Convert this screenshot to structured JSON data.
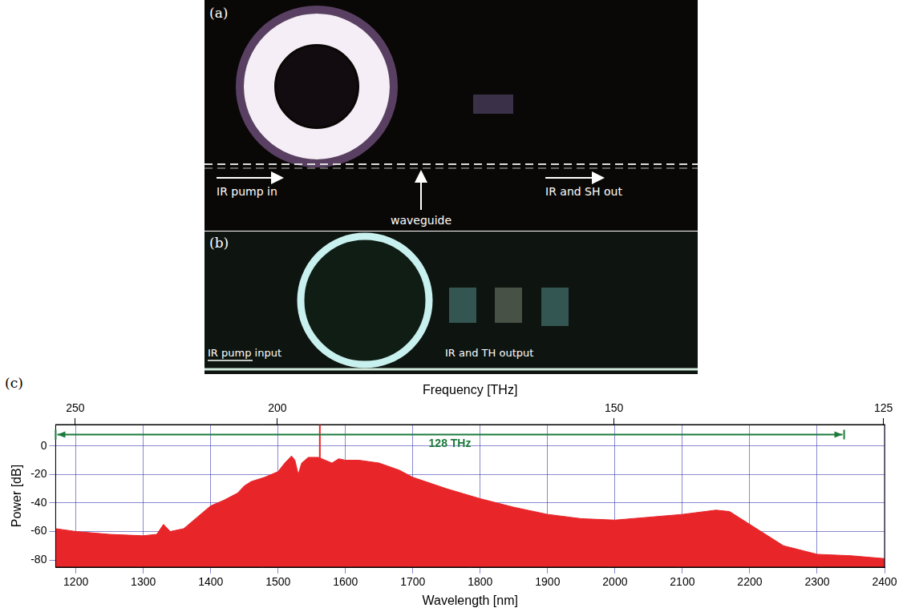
{
  "panel_a": {
    "letter": "(a)",
    "pump_label": "IR pump in",
    "waveguide_label": "waveguide",
    "output_label": "IR and SH out"
  },
  "panel_b": {
    "letter": "(b)",
    "pump_label": "IR pump input",
    "output_label": "IR and TH output"
  },
  "panel_c": {
    "letter": "(c)"
  },
  "chart_data": {
    "type": "line",
    "xlabel": "Wavelength [nm]",
    "ylabel": "Power [dB]",
    "x2label": "Frequency [THz]",
    "xlim": [
      1170,
      2400
    ],
    "xticks": [
      1200,
      1300,
      1400,
      1500,
      1600,
      1700,
      1800,
      1900,
      2000,
      2100,
      2200,
      2300,
      2400
    ],
    "x2ticks": [
      250,
      200,
      150,
      125
    ],
    "ylim": [
      -85,
      15
    ],
    "yticks": [
      -80,
      -60,
      -40,
      -20,
      0
    ],
    "grid": true,
    "series": [
      {
        "type": "area",
        "color": "#e8262a",
        "x": [
          1170,
          1200,
          1250,
          1300,
          1320,
          1330,
          1340,
          1360,
          1380,
          1400,
          1420,
          1440,
          1450,
          1460,
          1480,
          1500,
          1510,
          1520,
          1525,
          1530,
          1535,
          1545,
          1560,
          1570,
          1580,
          1590,
          1600,
          1620,
          1650,
          1680,
          1700,
          1750,
          1800,
          1850,
          1900,
          1950,
          2000,
          2050,
          2100,
          2150,
          2170,
          2200,
          2250,
          2300,
          2350,
          2400
        ],
        "values": [
          -58,
          -60,
          -62,
          -63,
          -62,
          -55,
          -60,
          -58,
          -50,
          -42,
          -38,
          -33,
          -28,
          -25,
          -22,
          -18,
          -12,
          -7,
          -10,
          -20,
          -12,
          -8,
          -8,
          -10,
          -12,
          -9,
          -10,
          -10,
          -12,
          -17,
          -22,
          -30,
          -37,
          -43,
          -48,
          -51,
          -52,
          -50,
          -48,
          -45,
          -46,
          -55,
          -70,
          -76,
          -77,
          -79
        ]
      },
      {
        "type": "line",
        "color": "#e8262a",
        "x": [
          1562,
          1562
        ],
        "values": [
          -10,
          15
        ]
      }
    ],
    "annotations": [
      {
        "text": "128 THz",
        "x": [
          1170,
          2340
        ],
        "y": 8,
        "color": "#1d7a3c"
      }
    ]
  }
}
